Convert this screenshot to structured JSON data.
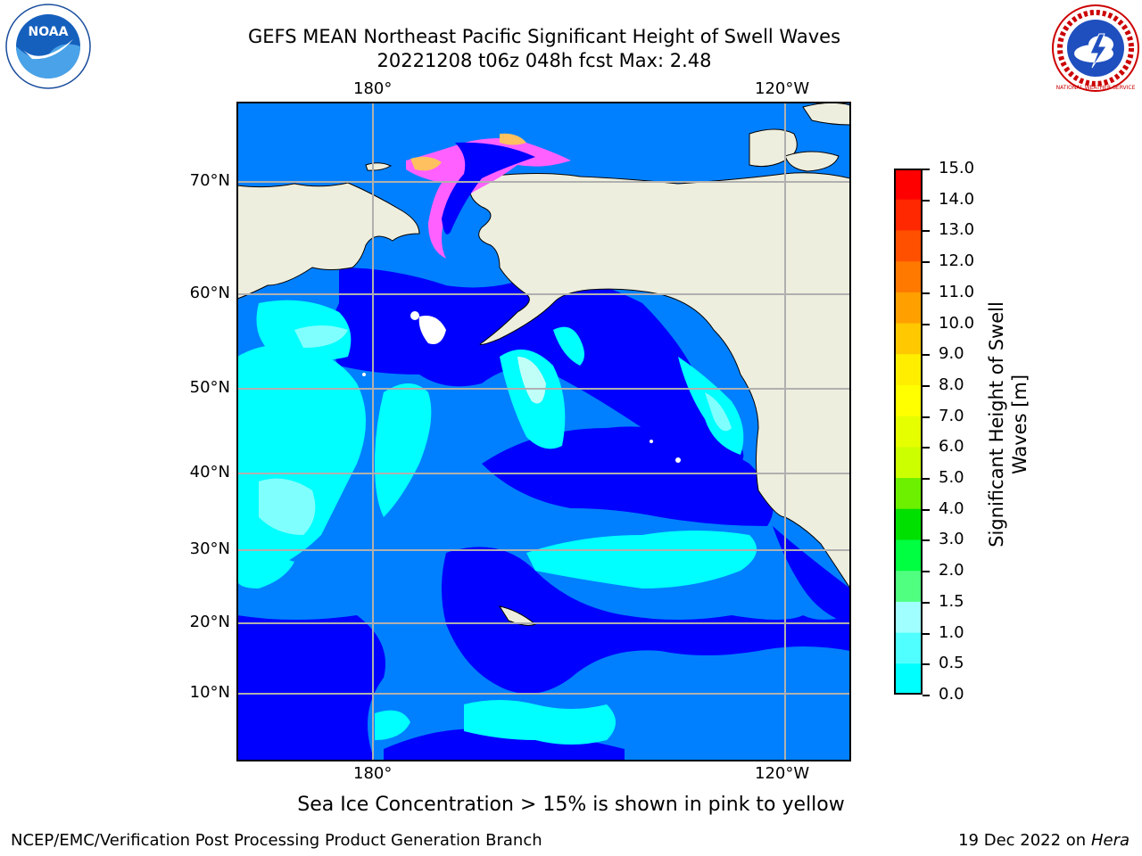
{
  "title": {
    "line1": "GEFS MEAN Northeast Pacific Significant Height of Swell Waves",
    "line2": "20221208 t06z 048h fcst   Max: 2.48"
  },
  "logos": {
    "left": "NOAA",
    "right": "NATIONAL WEATHER SERVICE"
  },
  "map": {
    "lon_labels_top": [
      "180°",
      "120°W"
    ],
    "lon_labels_bottom": [
      "180°",
      "120°W"
    ],
    "lat_labels": [
      "70°N",
      "60°N",
      "50°N",
      "40°N",
      "30°N",
      "20°N",
      "10°N"
    ],
    "colors": {
      "land": "#eeeede",
      "ocean_low": "#0000ff",
      "ocean_mid": "#0080ff",
      "ocean_cyan": "#00ffff",
      "ocean_light": "#80ffff",
      "ocean_pale": "#c0fff8",
      "grid": "#b0b0b0"
    }
  },
  "colorbar": {
    "label": "Significant Height of Swell Waves [m]",
    "label_line1": "Significant Height of Swell",
    "label_line2": "Waves [m]",
    "ticks": [
      "15.0",
      "14.0",
      "13.0",
      "12.0",
      "11.0",
      "10.0",
      "9.0",
      "8.0",
      "7.0",
      "6.0",
      "5.0",
      "4.0",
      "3.0",
      "2.0",
      "1.5",
      "1.0",
      "0.5",
      "0.0"
    ],
    "colors": [
      "#ff0000",
      "#ff2800",
      "#ff5000",
      "#ff7800",
      "#ffa000",
      "#ffc800",
      "#ffee00",
      "#ffff00",
      "#e6ff00",
      "#ccff00",
      "#6cf000",
      "#00e000",
      "#00ff40",
      "#50ff80",
      "#a0ffff",
      "#50ffff",
      "#00ffff",
      "#0080ff",
      "#0000ff"
    ]
  },
  "note": "Sea Ice Concentration > 15% is shown in pink to yellow",
  "footer": {
    "left": "NCEP/EMC/Verification Post Processing Product Generation Branch",
    "right_date": "19 Dec 2022 on",
    "right_host": "Hera"
  }
}
